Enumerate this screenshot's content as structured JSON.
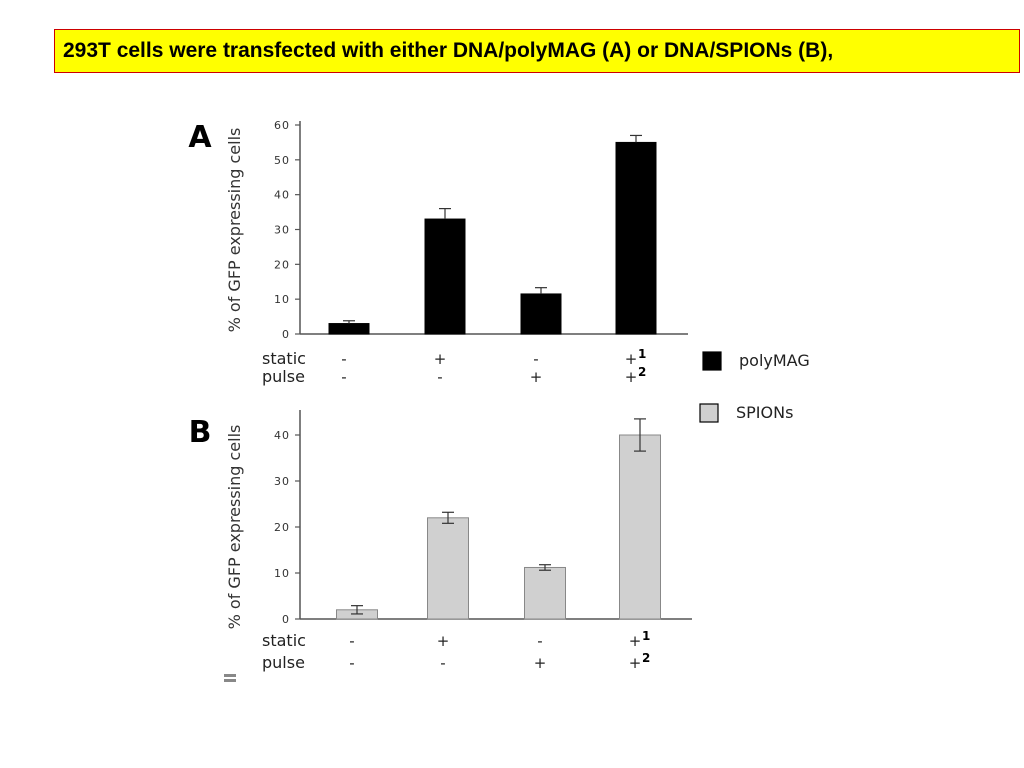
{
  "slide": {
    "title": "293T cells were transfected with either DNA/polyMAG (A) or DNA/SPIONs (B),",
    "title_bg": "#ffff00",
    "title_border": "#cc0000"
  },
  "legend": {
    "items": [
      {
        "label": "polyMAG",
        "color": "#000000"
      },
      {
        "label": "SPIONs",
        "color": "#d0d0d0"
      }
    ]
  },
  "conditions": {
    "row_labels": [
      "static",
      "pulse"
    ],
    "static": [
      "-",
      "+",
      "-",
      "+"
    ],
    "pulse": [
      "-",
      "-",
      "+",
      "+"
    ],
    "static_last_superscript": "1",
    "pulse_last_superscript": "2"
  },
  "chart_data": [
    {
      "type": "bar",
      "panel_label": "A",
      "ylabel": "% of GFP expressing cells",
      "ylim": [
        0,
        60
      ],
      "yticks": [
        0,
        10,
        20,
        30,
        40,
        50,
        60
      ],
      "categories": [
        "static - / pulse -",
        "static + / pulse -",
        "static - / pulse +",
        "static +1 / pulse +2"
      ],
      "series": [
        {
          "name": "polyMAG",
          "color": "#000000",
          "values": [
            3,
            33,
            11.5,
            55
          ],
          "errors": [
            0.8,
            3,
            1.8,
            2
          ]
        }
      ]
    },
    {
      "type": "bar",
      "panel_label": "B",
      "ylabel": "% of GFP expressing cells",
      "ylim": [
        0,
        45
      ],
      "yticks": [
        0,
        10,
        20,
        30,
        40
      ],
      "categories": [
        "static - / pulse -",
        "static + / pulse -",
        "static - / pulse +",
        "static +1 / pulse +2"
      ],
      "series": [
        {
          "name": "SPIONs",
          "color": "#d0d0d0",
          "values": [
            2,
            22,
            11.2,
            40
          ],
          "errors": [
            0.9,
            1.2,
            0.6,
            3.5
          ]
        }
      ]
    }
  ]
}
